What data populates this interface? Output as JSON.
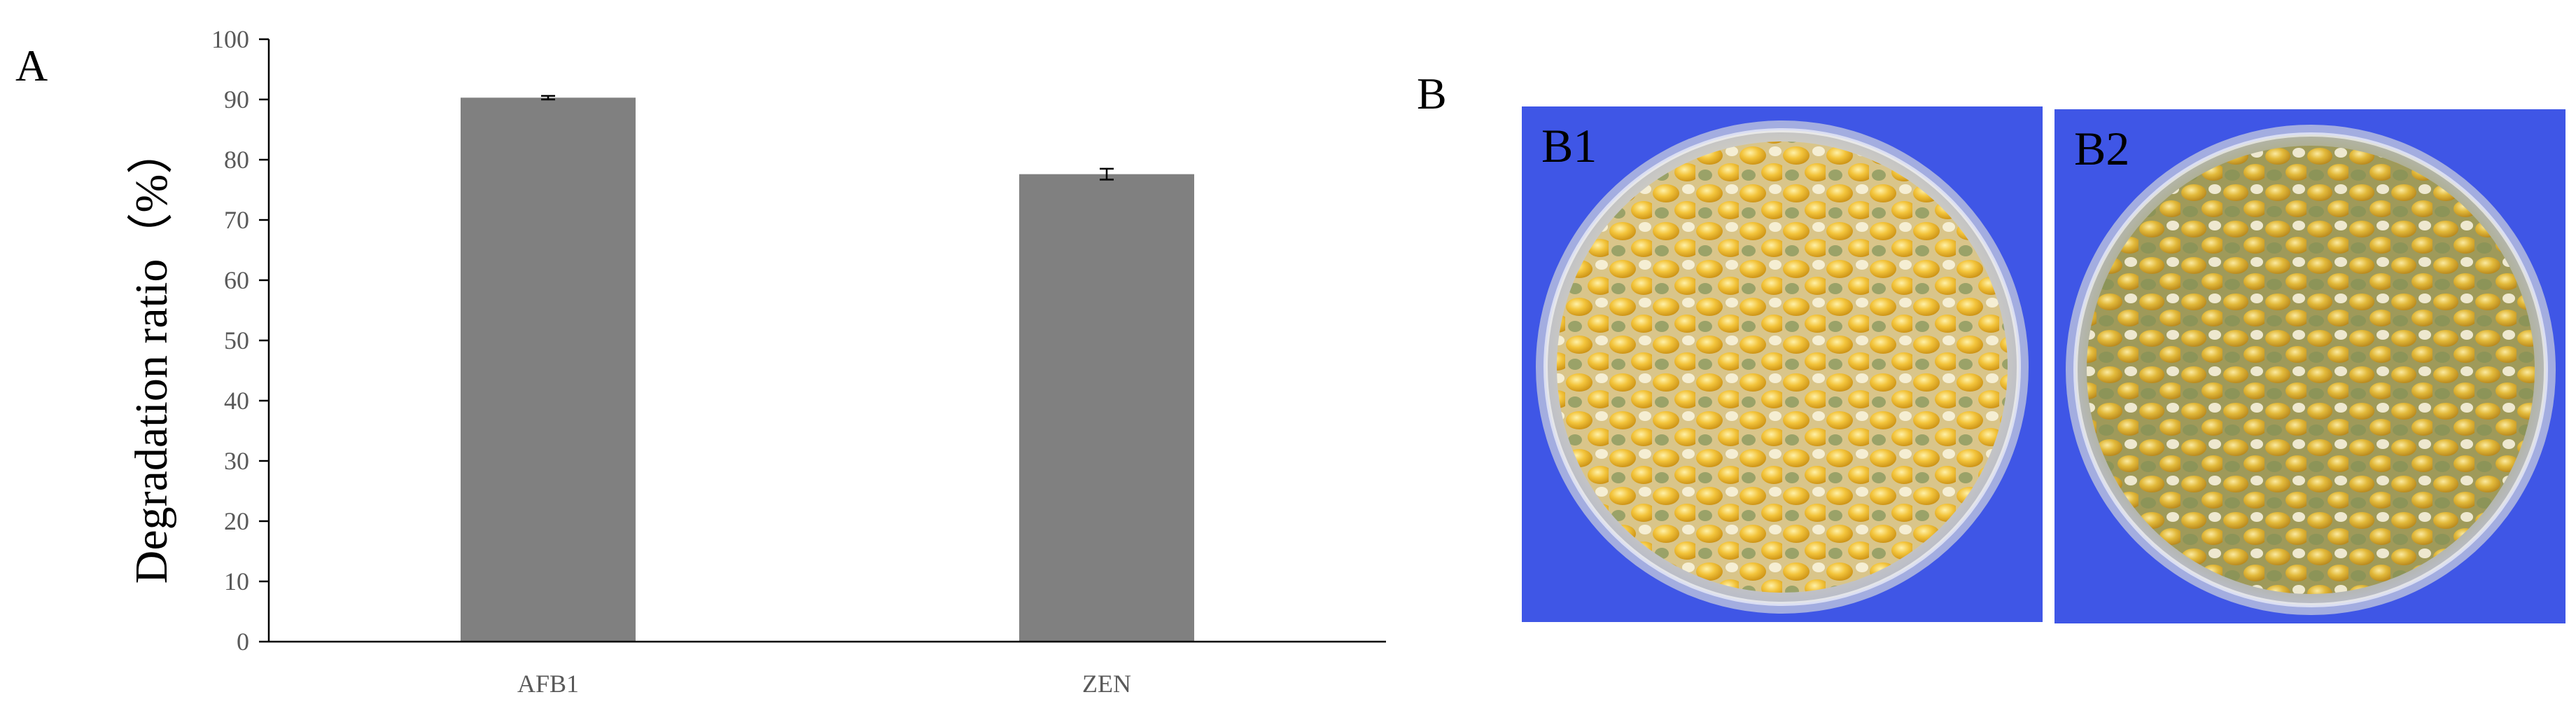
{
  "panels": {
    "a_letter": "A",
    "b_letter": "B"
  },
  "chart_data": {
    "type": "bar",
    "title": "",
    "xlabel": "",
    "ylabel": "Degradation ratio（%）",
    "categories": [
      "AFB1",
      "ZEN"
    ],
    "values": [
      90.3,
      77.6
    ],
    "errors": [
      0.3,
      0.9
    ],
    "ylim": [
      0,
      100
    ],
    "yticks": [
      0,
      10,
      20,
      30,
      40,
      50,
      60,
      70,
      80,
      90,
      100
    ],
    "grid": false,
    "legend": "none",
    "bar_color": "#808080",
    "axis_color": "#000000",
    "tick_label_color": "#595959"
  },
  "photos": [
    {
      "label": "B1",
      "background": "#3f56e6"
    },
    {
      "label": "B2",
      "background": "#3f56e6"
    }
  ]
}
